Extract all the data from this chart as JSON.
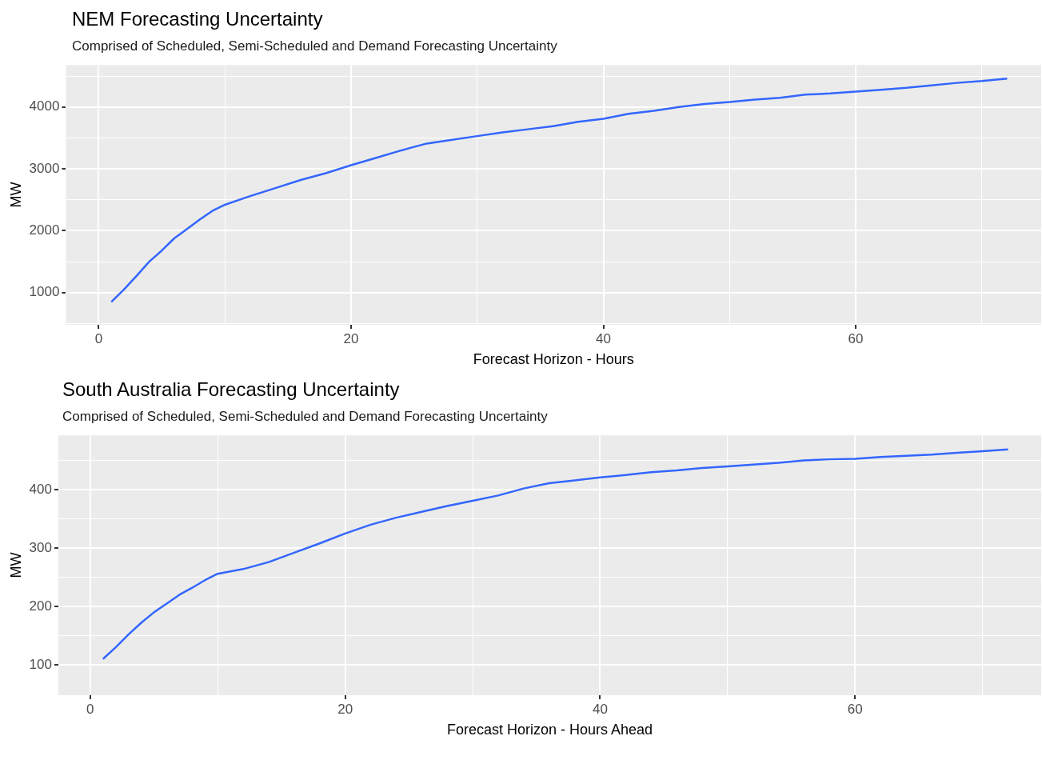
{
  "chart_data": [
    {
      "type": "line",
      "title": "NEM Forecasting Uncertainty",
      "subtitle": "Comprised of Scheduled, Semi-Scheduled and Demand Forecasting Uncertainty",
      "xlabel": "Forecast Horizon - Hours",
      "ylabel": "MW",
      "color": "#3366ff",
      "marker": "none",
      "grid": true,
      "x": [
        1,
        2,
        3,
        4,
        5,
        6,
        7,
        8,
        9,
        10,
        12,
        14,
        16,
        18,
        20,
        22,
        24,
        26,
        28,
        30,
        32,
        34,
        36,
        38,
        40,
        42,
        44,
        46,
        48,
        50,
        52,
        54,
        56,
        58,
        60,
        62,
        64,
        66,
        68,
        70,
        72
      ],
      "values": [
        850,
        1050,
        1270,
        1500,
        1680,
        1880,
        2030,
        2180,
        2320,
        2420,
        2560,
        2690,
        2820,
        2930,
        3060,
        3180,
        3300,
        3410,
        3470,
        3530,
        3590,
        3640,
        3690,
        3760,
        3810,
        3890,
        3940,
        4000,
        4050,
        4080,
        4120,
        4150,
        4200,
        4220,
        4250,
        4280,
        4310,
        4350,
        4390,
        4420,
        4460
      ],
      "xlim": [
        -2.6,
        74.7
      ],
      "ylim": [
        480,
        4680
      ],
      "xticks": [
        0,
        {
          "value": 10,
          "label": null
        },
        20,
        {
          "value": 30,
          "label": null
        },
        40,
        {
          "value": 50,
          "label": null
        },
        60,
        {
          "value": 70,
          "label": null
        }
      ],
      "yticks": [
        {
          "value": 500,
          "label": null
        },
        1000,
        {
          "value": 1500,
          "label": null
        },
        2000,
        {
          "value": 2500,
          "label": null
        },
        3000,
        {
          "value": 3500,
          "label": null
        },
        4000,
        {
          "value": 4500,
          "label": null
        }
      ]
    },
    {
      "type": "line",
      "title": "South Australia Forecasting Uncertainty",
      "subtitle": "Comprised of Scheduled, Semi-Scheduled and Demand Forecasting Uncertainty",
      "xlabel": "Forecast Horizon - Hours Ahead",
      "ylabel": "MW",
      "color": "#3366ff",
      "marker": "none",
      "grid": true,
      "x": [
        1,
        2,
        3,
        4,
        5,
        6,
        7,
        8,
        9,
        10,
        12,
        14,
        16,
        18,
        20,
        22,
        24,
        26,
        28,
        30,
        32,
        34,
        36,
        38,
        40,
        42,
        44,
        46,
        48,
        50,
        52,
        54,
        56,
        58,
        60,
        62,
        64,
        66,
        68,
        70,
        72
      ],
      "values": [
        110,
        130,
        152,
        172,
        190,
        205,
        220,
        232,
        245,
        256,
        264,
        276,
        292,
        308,
        325,
        340,
        352,
        362,
        372,
        381,
        390,
        402,
        411,
        416,
        421,
        425,
        430,
        433,
        437,
        440,
        443,
        446,
        450,
        452,
        453,
        456,
        458,
        460,
        463,
        466,
        469
      ],
      "xlim": [
        -2.5,
        74.6
      ],
      "ylim": [
        48,
        493
      ],
      "xticks": [
        0,
        {
          "value": 10,
          "label": null
        },
        20,
        {
          "value": 30,
          "label": null
        },
        40,
        {
          "value": 50,
          "label": null
        },
        60,
        {
          "value": 70,
          "label": null
        }
      ],
      "yticks": [
        100,
        {
          "value": 150,
          "label": null
        },
        200,
        {
          "value": 250,
          "label": null
        },
        300,
        {
          "value": 350,
          "label": null
        },
        400,
        {
          "value": 450,
          "label": null
        }
      ]
    }
  ]
}
